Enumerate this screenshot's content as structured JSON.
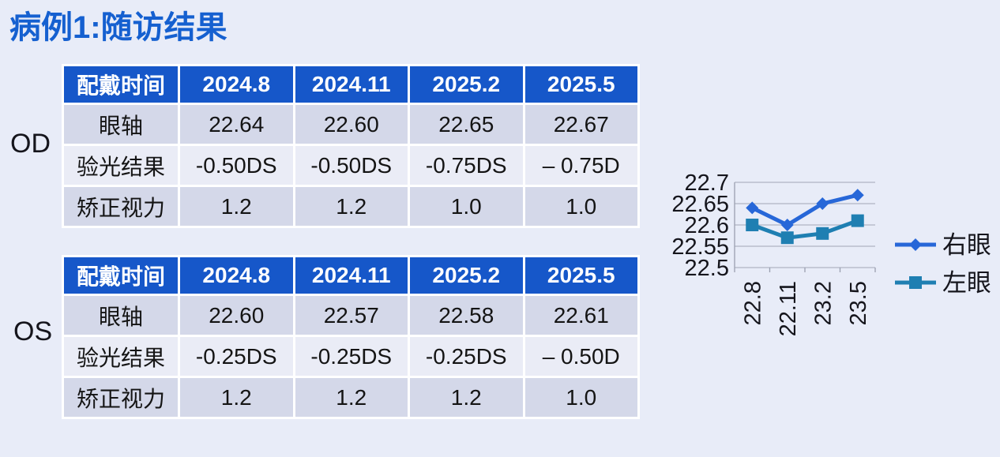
{
  "page": {
    "title": "病例1:随访结果"
  },
  "tables": [
    {
      "eye_label": "OD",
      "headers": [
        "配戴时间",
        "2024.8",
        "2024.11",
        "2025.2",
        "2025.5"
      ],
      "rows": [
        {
          "label": "眼轴",
          "values": [
            "22.64",
            "22.60",
            "22.65",
            "22.67"
          ]
        },
        {
          "label": "验光结果",
          "values": [
            "-0.50DS",
            "-0.50DS",
            "-0.75DS",
            "– 0.75D"
          ]
        },
        {
          "label": "矫正视力",
          "values": [
            "1.2",
            "1.2",
            "1.0",
            "1.0"
          ]
        }
      ]
    },
    {
      "eye_label": "OS",
      "headers": [
        "配戴时间",
        "2024.8",
        "2024.11",
        "2025.2",
        "2025.5"
      ],
      "rows": [
        {
          "label": "眼轴",
          "values": [
            "22.60",
            "22.57",
            "22.58",
            "22.61"
          ]
        },
        {
          "label": "验光结果",
          "values": [
            "-0.25DS",
            "-0.25DS",
            "-0.25DS",
            "– 0.50D"
          ]
        },
        {
          "label": "矫正视力",
          "values": [
            "1.2",
            "1.2",
            "1.2",
            "1.0"
          ]
        }
      ]
    }
  ],
  "chart_data": {
    "type": "line",
    "x": [
      "22.8",
      "22.11",
      "23.2",
      "23.5"
    ],
    "series": [
      {
        "name": "右眼",
        "values": [
          22.64,
          22.6,
          22.65,
          22.67
        ],
        "color": "#2767d8",
        "marker": "diamond"
      },
      {
        "name": "左眼",
        "values": [
          22.6,
          22.57,
          22.58,
          22.61
        ],
        "color": "#1f7fb2",
        "marker": "square"
      }
    ],
    "ylim": [
      22.5,
      22.7
    ],
    "yticks": [
      "22.5",
      "22.55",
      "22.6",
      "22.65",
      "22.7"
    ],
    "xlabel": "",
    "ylabel": "",
    "title": "",
    "grid": true,
    "legend_position": "right"
  },
  "colors": {
    "background": "#e8ecf8",
    "title_blue": "#1560d0",
    "header_blue": "#1657c9",
    "row_dark": "#d4d8e9",
    "row_light": "#eaecf6",
    "right_eye_line": "#2767d8",
    "left_eye_line": "#1f7fb2",
    "gridline": "#b0b4c3"
  }
}
